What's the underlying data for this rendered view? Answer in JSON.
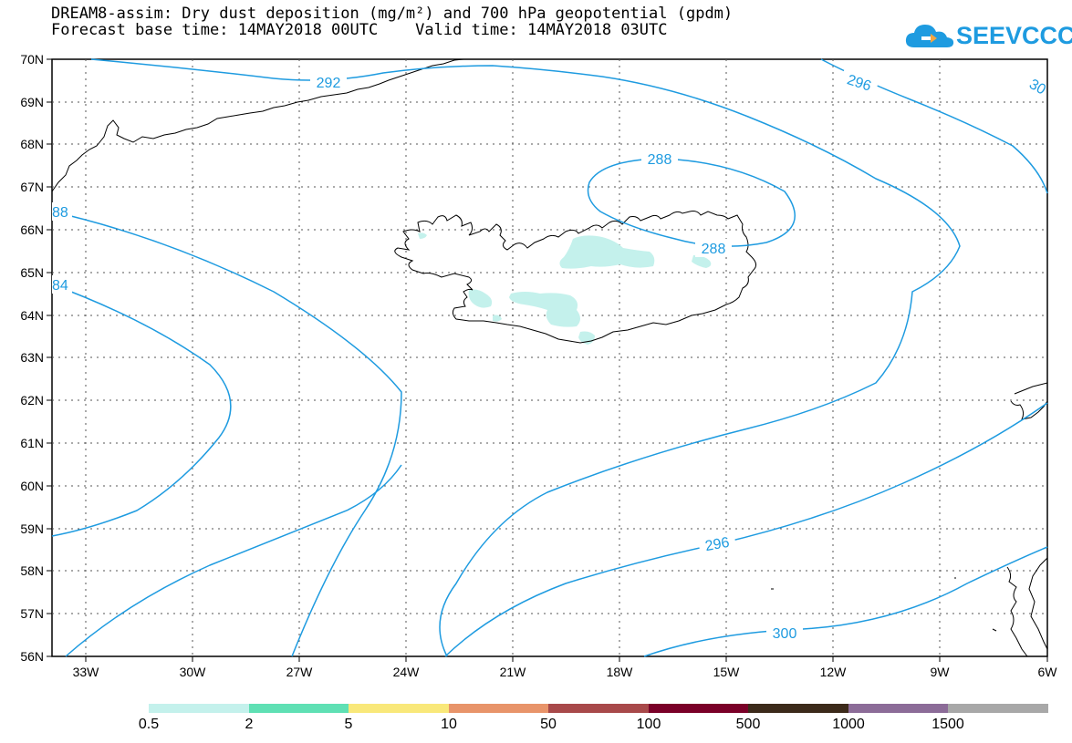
{
  "title_line1": "DREAM8-assim: Dry dust deposition (mg/m²) and 700 hPa geopotential (gpdm)",
  "title_line2": "Forecast base time: 14MAY2018 00UTC    Valid time: 14MAY2018 03UTC",
  "logo_text": "SEEVCCC",
  "map": {
    "lat_labels": [
      "70N",
      "69N",
      "68N",
      "67N",
      "66N",
      "65N",
      "64N",
      "63N",
      "62N",
      "61N",
      "60N",
      "59N",
      "58N",
      "57N",
      "56N"
    ],
    "lon_labels": [
      "33W",
      "30W",
      "27W",
      "24W",
      "21W",
      "18W",
      "15W",
      "12W",
      "9W",
      "6W"
    ],
    "contour_labels": {
      "c292": "292",
      "c296_top": "296",
      "c30_edge": "30",
      "c288_top": "288",
      "c288_low": "288",
      "c88_edge": "88",
      "c84_edge": "84",
      "c296_mid": "296",
      "c300_mid": "300"
    },
    "contour_color": "#1e9be0",
    "dust_color": "#c4f1ec"
  },
  "legend": {
    "colors": [
      "#c4f1ec",
      "#5fe0b4",
      "#f9e87a",
      "#e8946a",
      "#a8494a",
      "#7a0028",
      "#3c2a1a",
      "#8c6c98",
      "#a8a8a8"
    ],
    "labels": [
      "0.5",
      "2",
      "5",
      "10",
      "50",
      "100",
      "500",
      "1000",
      "1500"
    ]
  }
}
